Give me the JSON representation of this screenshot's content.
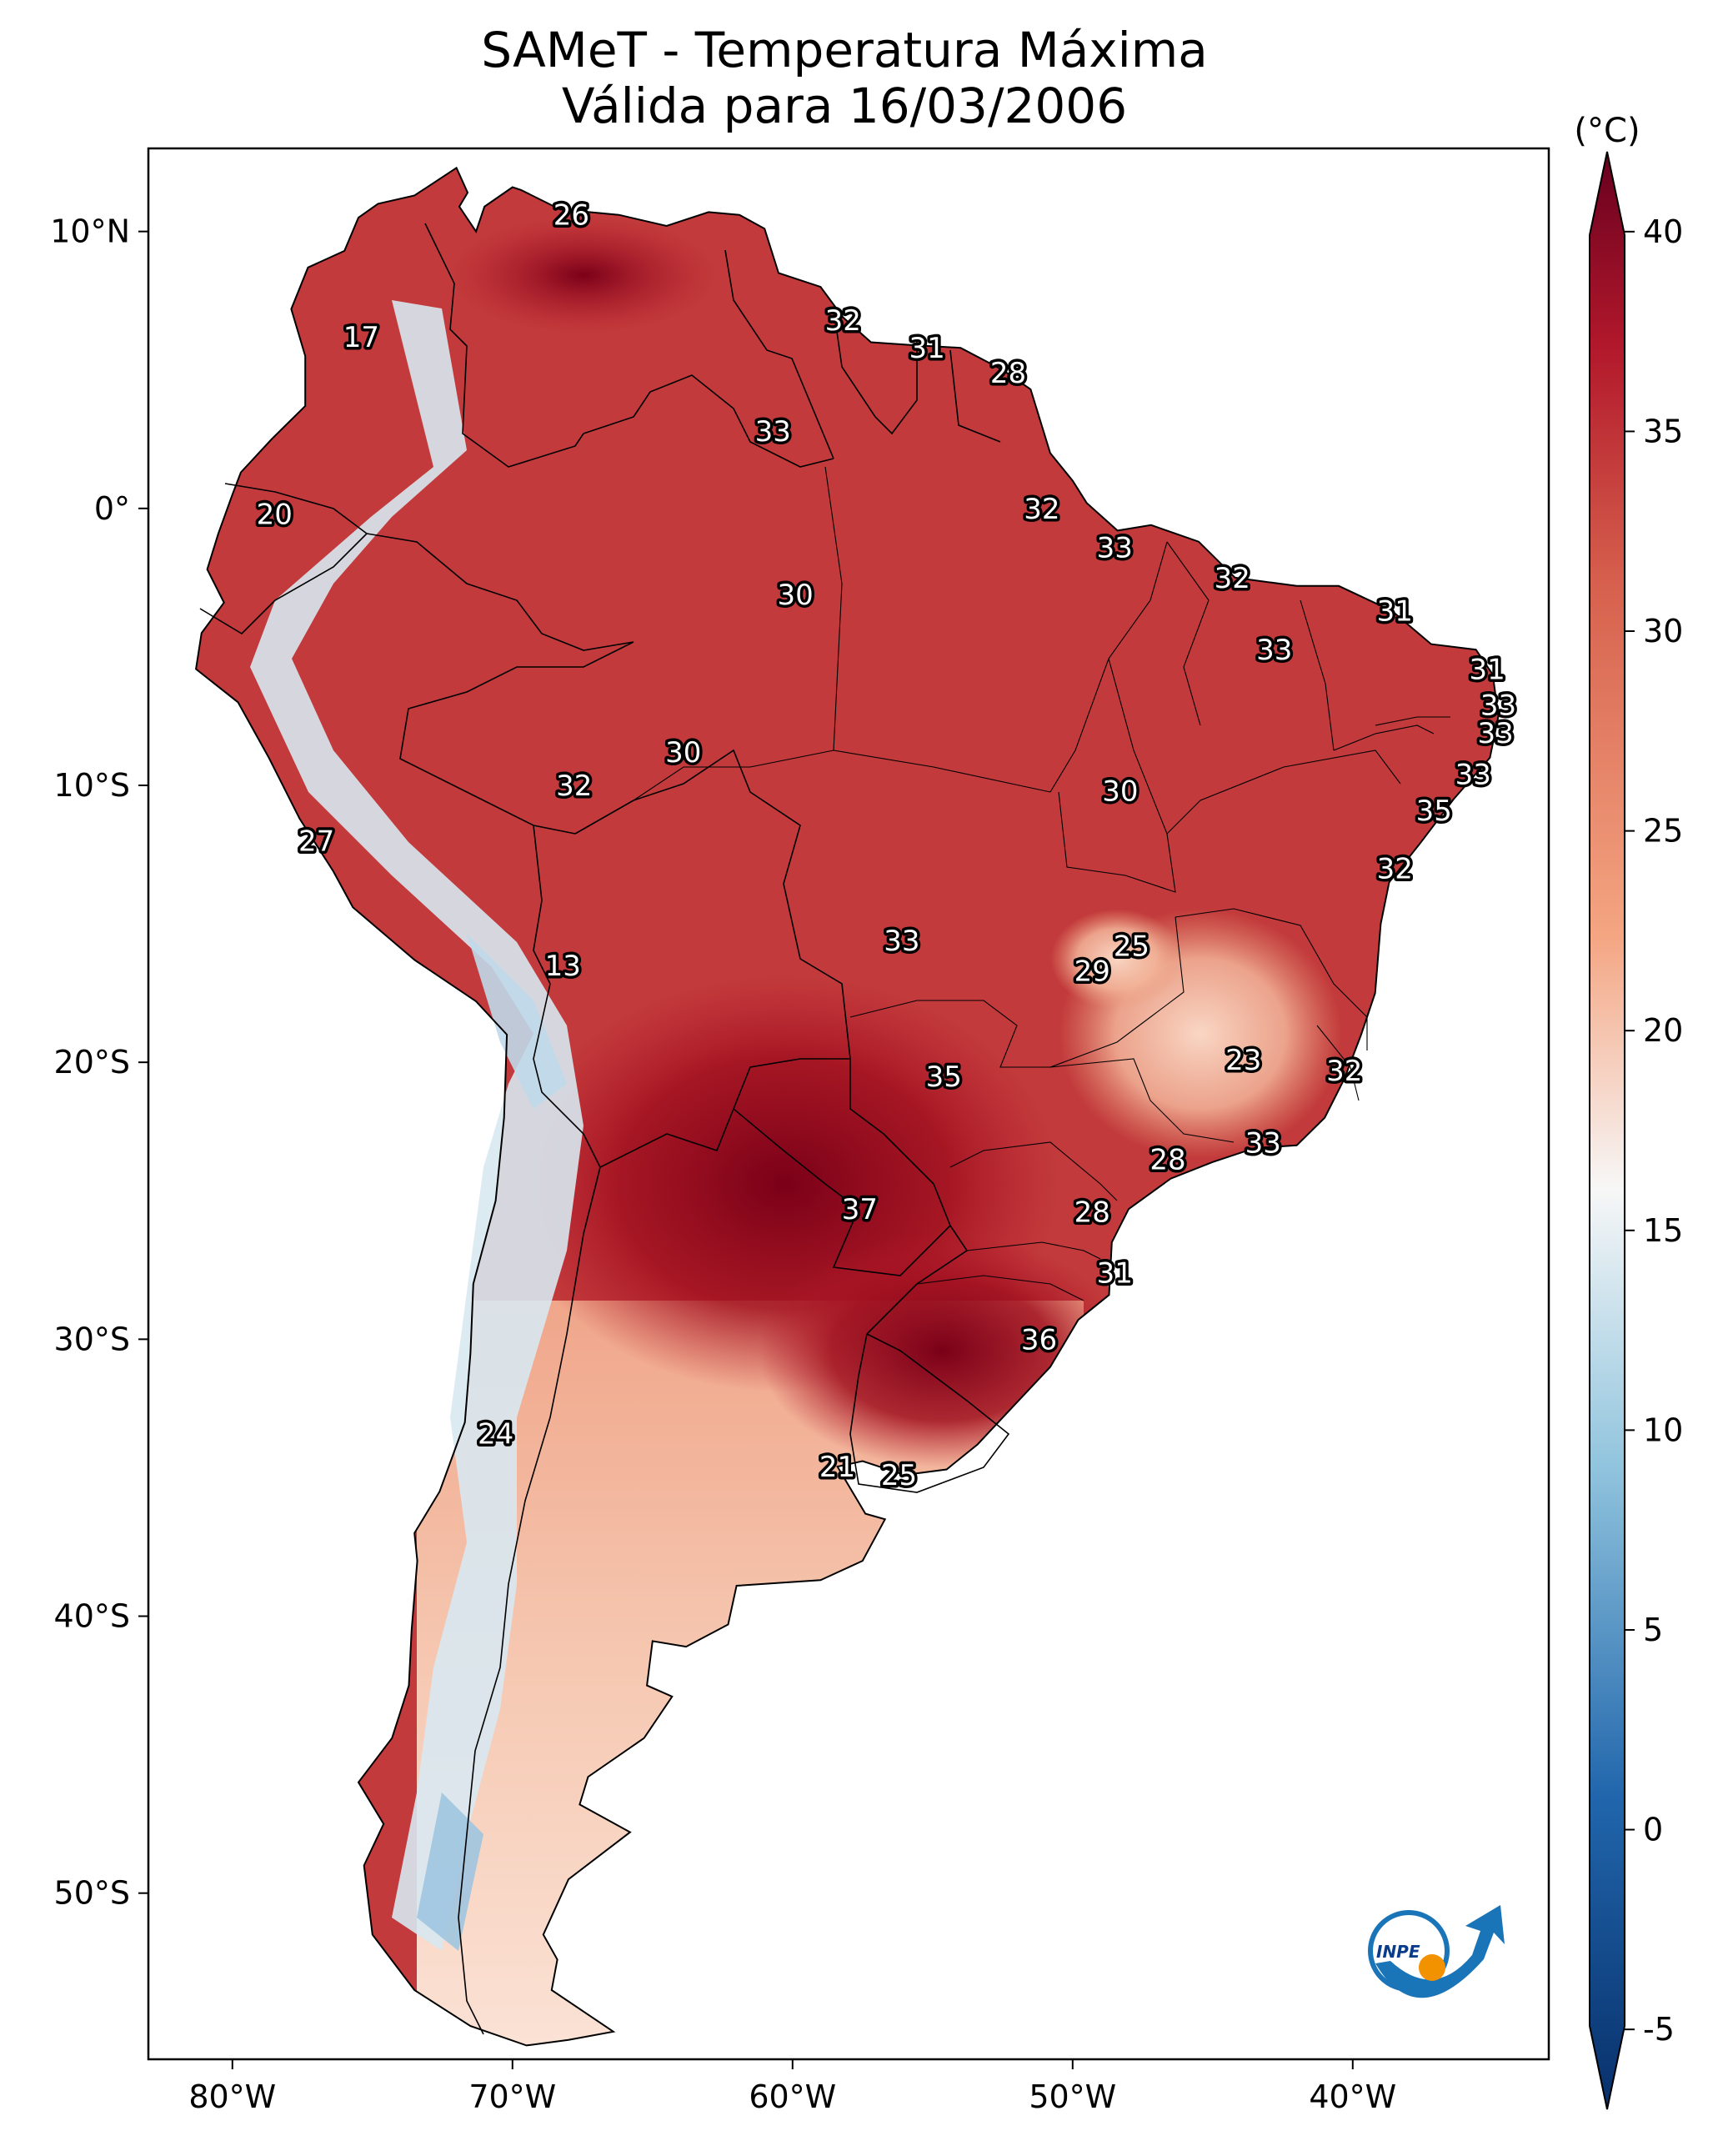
{
  "title": {
    "line1": "SAMeT - Temperatura Máxima",
    "line2": "Válida para 16/03/2006"
  },
  "map": {
    "lon_range": [
      -83,
      -33
    ],
    "lat_range": [
      -56,
      13
    ],
    "lon_ticks": [
      {
        "value": -80,
        "label": "80°W"
      },
      {
        "value": -70,
        "label": "70°W"
      },
      {
        "value": -60,
        "label": "60°W"
      },
      {
        "value": -50,
        "label": "50°W"
      },
      {
        "value": -40,
        "label": "40°W"
      }
    ],
    "lat_ticks": [
      {
        "value": 10,
        "label": "10°N"
      },
      {
        "value": 0,
        "label": "0°"
      },
      {
        "value": -10,
        "label": "10°S"
      },
      {
        "value": -20,
        "label": "20°S"
      },
      {
        "value": -30,
        "label": "30°S"
      },
      {
        "value": -40,
        "label": "40°S"
      },
      {
        "value": -50,
        "label": "50°S"
      }
    ],
    "city_values": [
      {
        "lon": -67.9,
        "lat": 10.6,
        "text": "26"
      },
      {
        "lon": -75.4,
        "lat": 6.2,
        "text": "17"
      },
      {
        "lon": -78.5,
        "lat": -0.2,
        "text": "20"
      },
      {
        "lon": -77.0,
        "lat": -12.0,
        "text": "27"
      },
      {
        "lon": -58.2,
        "lat": 6.8,
        "text": "32"
      },
      {
        "lon": -55.2,
        "lat": 5.8,
        "text": "31"
      },
      {
        "lon": -52.3,
        "lat": 4.9,
        "text": "28"
      },
      {
        "lon": -60.7,
        "lat": 2.8,
        "text": "33"
      },
      {
        "lon": -51.1,
        "lat": 0.0,
        "text": "32"
      },
      {
        "lon": -48.5,
        "lat": -1.4,
        "text": "33"
      },
      {
        "lon": -44.3,
        "lat": -2.5,
        "text": "32"
      },
      {
        "lon": -38.5,
        "lat": -3.7,
        "text": "31"
      },
      {
        "lon": -59.9,
        "lat": -3.1,
        "text": "30"
      },
      {
        "lon": -42.8,
        "lat": -5.1,
        "text": "33"
      },
      {
        "lon": -35.2,
        "lat": -5.8,
        "text": "31"
      },
      {
        "lon": -34.8,
        "lat": -7.1,
        "text": "33"
      },
      {
        "lon": -34.9,
        "lat": -8.1,
        "text": "33"
      },
      {
        "lon": -35.7,
        "lat": -9.6,
        "text": "33"
      },
      {
        "lon": -37.1,
        "lat": -10.9,
        "text": "35"
      },
      {
        "lon": -38.5,
        "lat": -13.0,
        "text": "32"
      },
      {
        "lon": -63.9,
        "lat": -8.8,
        "text": "30"
      },
      {
        "lon": -67.8,
        "lat": -10.0,
        "text": "32"
      },
      {
        "lon": -48.3,
        "lat": -10.2,
        "text": "30"
      },
      {
        "lon": -56.1,
        "lat": -15.6,
        "text": "33"
      },
      {
        "lon": -47.9,
        "lat": -15.8,
        "text": "25"
      },
      {
        "lon": -49.3,
        "lat": -16.7,
        "text": "29"
      },
      {
        "lon": -68.2,
        "lat": -16.5,
        "text": "13"
      },
      {
        "lon": -43.9,
        "lat": -19.9,
        "text": "23"
      },
      {
        "lon": -40.3,
        "lat": -20.3,
        "text": "32"
      },
      {
        "lon": -54.6,
        "lat": -20.5,
        "text": "35"
      },
      {
        "lon": -43.2,
        "lat": -22.9,
        "text": "33"
      },
      {
        "lon": -46.6,
        "lat": -23.5,
        "text": "28"
      },
      {
        "lon": -57.6,
        "lat": -25.3,
        "text": "37"
      },
      {
        "lon": -49.3,
        "lat": -25.4,
        "text": "28"
      },
      {
        "lon": -48.5,
        "lat": -27.6,
        "text": "31"
      },
      {
        "lon": -51.2,
        "lat": -30.0,
        "text": "36"
      },
      {
        "lon": -70.6,
        "lat": -33.4,
        "text": "24"
      },
      {
        "lon": -58.4,
        "lat": -34.6,
        "text": "21"
      },
      {
        "lon": -56.2,
        "lat": -34.9,
        "text": "25"
      }
    ]
  },
  "colorbar": {
    "unit": "(°C)",
    "vmin": -7,
    "vmax": 42,
    "ticks": [
      {
        "value": 40,
        "label": "40"
      },
      {
        "value": 35,
        "label": "35"
      },
      {
        "value": 30,
        "label": "30"
      },
      {
        "value": 25,
        "label": "25"
      },
      {
        "value": 20,
        "label": "20"
      },
      {
        "value": 15,
        "label": "15"
      },
      {
        "value": 10,
        "label": "10"
      },
      {
        "value": 5,
        "label": "5"
      },
      {
        "value": 0,
        "label": "0"
      },
      {
        "value": -5,
        "label": "-5"
      }
    ],
    "colors": {
      "cold_end": "#08306b",
      "cold": "#2166ac",
      "cool": "#92c5de",
      "neutral": "#f7f7f7",
      "warm": "#f4a582",
      "hot": "#d6604d",
      "hot_end": "#67001f"
    }
  },
  "logo": {
    "text": "INPE",
    "blue": "#1a74b8",
    "orange": "#f39200"
  }
}
